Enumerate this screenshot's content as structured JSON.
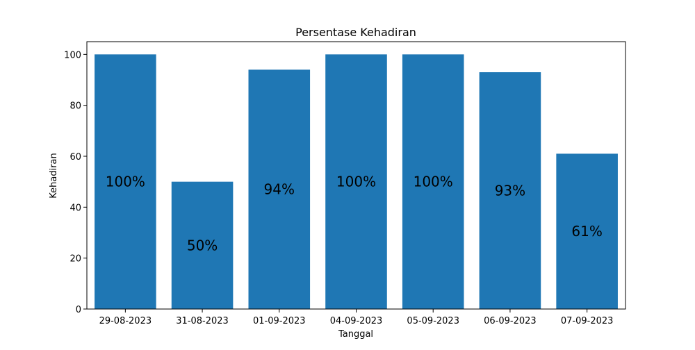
{
  "chart_data": {
    "type": "bar",
    "title": "Persentase Kehadiran",
    "xlabel": "Tanggal",
    "ylabel": "Kehadiran",
    "categories": [
      "29-08-2023",
      "31-08-2023",
      "01-09-2023",
      "04-09-2023",
      "05-09-2023",
      "06-09-2023",
      "07-09-2023"
    ],
    "values": [
      100,
      50,
      94,
      100,
      100,
      93,
      61
    ],
    "data_labels": [
      "100%",
      "50%",
      "94%",
      "100%",
      "100%",
      "93%",
      "61%"
    ],
    "ylim": [
      0,
      105
    ],
    "yticks": [
      0,
      20,
      40,
      60,
      80,
      100
    ],
    "grid": false,
    "bar_color": "#1f77b4"
  }
}
